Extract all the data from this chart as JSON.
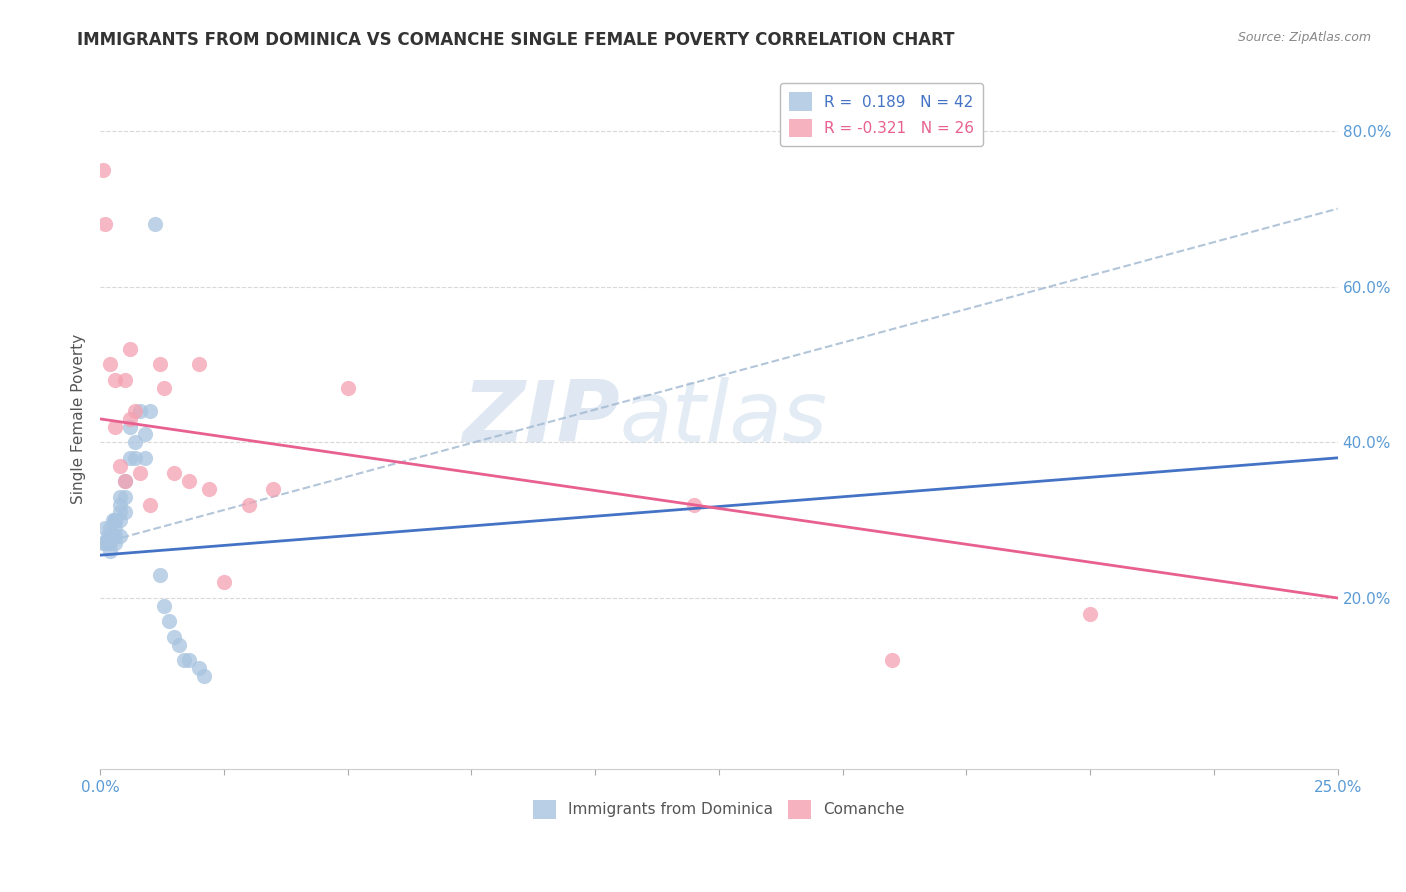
{
  "title": "IMMIGRANTS FROM DOMINICA VS COMANCHE SINGLE FEMALE POVERTY CORRELATION CHART",
  "source": "Source: ZipAtlas.com",
  "ylabel": "Single Female Poverty",
  "right_yticks": [
    0.2,
    0.4,
    0.6,
    0.8
  ],
  "right_yticklabels": [
    "20.0%",
    "40.0%",
    "60.0%",
    "80.0%"
  ],
  "xlim": [
    0.0,
    0.25
  ],
  "ylim": [
    -0.02,
    0.88
  ],
  "blue_scatter_x": [
    0.0005,
    0.001,
    0.001,
    0.0015,
    0.0015,
    0.002,
    0.002,
    0.002,
    0.002,
    0.0025,
    0.0025,
    0.003,
    0.003,
    0.003,
    0.003,
    0.003,
    0.004,
    0.004,
    0.004,
    0.004,
    0.004,
    0.005,
    0.005,
    0.005,
    0.006,
    0.006,
    0.007,
    0.007,
    0.008,
    0.009,
    0.009,
    0.01,
    0.011,
    0.012,
    0.013,
    0.014,
    0.015,
    0.016,
    0.017,
    0.018,
    0.02,
    0.021
  ],
  "blue_scatter_y": [
    0.27,
    0.29,
    0.27,
    0.27,
    0.28,
    0.29,
    0.28,
    0.27,
    0.26,
    0.3,
    0.28,
    0.3,
    0.3,
    0.29,
    0.28,
    0.27,
    0.33,
    0.32,
    0.31,
    0.3,
    0.28,
    0.35,
    0.33,
    0.31,
    0.38,
    0.42,
    0.4,
    0.38,
    0.44,
    0.41,
    0.38,
    0.44,
    0.68,
    0.23,
    0.19,
    0.17,
    0.15,
    0.14,
    0.12,
    0.12,
    0.11,
    0.1
  ],
  "pink_scatter_x": [
    0.0005,
    0.001,
    0.002,
    0.003,
    0.003,
    0.004,
    0.005,
    0.005,
    0.006,
    0.006,
    0.007,
    0.008,
    0.01,
    0.012,
    0.013,
    0.015,
    0.018,
    0.02,
    0.022,
    0.025,
    0.03,
    0.035,
    0.05,
    0.12,
    0.16,
    0.2
  ],
  "pink_scatter_y": [
    0.75,
    0.68,
    0.5,
    0.48,
    0.42,
    0.37,
    0.48,
    0.35,
    0.52,
    0.43,
    0.44,
    0.36,
    0.32,
    0.5,
    0.47,
    0.36,
    0.35,
    0.5,
    0.34,
    0.22,
    0.32,
    0.34,
    0.47,
    0.32,
    0.12,
    0.18
  ],
  "blue_line_x": [
    0.0,
    0.25
  ],
  "blue_line_y": [
    0.255,
    0.38
  ],
  "pink_line_x": [
    0.0,
    0.25
  ],
  "pink_line_y": [
    0.43,
    0.2
  ],
  "blue_color": "#a8c4e0",
  "pink_color": "#f4a0b0",
  "blue_line_color": "#4472c4",
  "pink_line_color": "#e86090",
  "blue_dashed_line_color": "#a8c4e0",
  "watermark_zip": "ZIP",
  "watermark_atlas": "atlas",
  "watermark_color": "#c8d8e8",
  "background_color": "#ffffff",
  "grid_color": "#d8d8d8",
  "legend_blue_label": "R =  0.189   N = 42",
  "legend_pink_label": "R = -0.321   N = 26",
  "legend_blue_color": "#a8c4e0",
  "legend_pink_color": "#f4a0b0",
  "xtick_positions": [
    0.0,
    0.025,
    0.05,
    0.075,
    0.1,
    0.125,
    0.15,
    0.175,
    0.2,
    0.225,
    0.25
  ],
  "bottom_legend_blue": "Immigrants from Dominica",
  "bottom_legend_pink": "Comanche"
}
